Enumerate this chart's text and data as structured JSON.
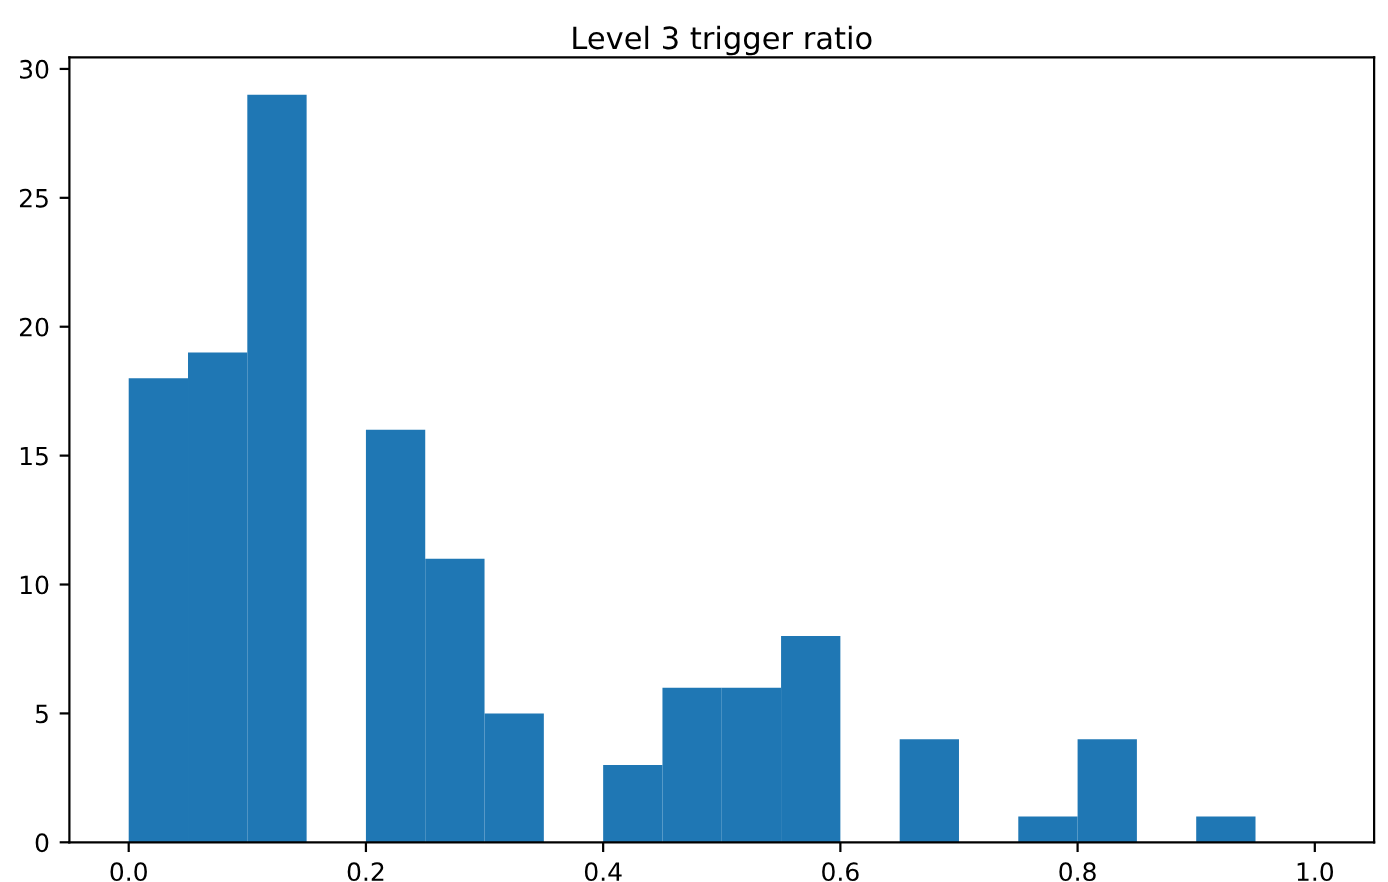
{
  "chart_data": {
    "type": "histogram",
    "title": "Level 3 trigger ratio",
    "bins": [
      0.0,
      0.05,
      0.1,
      0.15,
      0.2,
      0.25,
      0.3,
      0.35,
      0.4,
      0.45,
      0.5,
      0.55,
      0.6,
      0.65,
      0.7,
      0.75,
      0.8,
      0.85,
      0.9,
      0.95,
      1.0
    ],
    "values": [
      18,
      19,
      29,
      0,
      16,
      11,
      5,
      0,
      3,
      6,
      6,
      8,
      0,
      4,
      0,
      1,
      4,
      0,
      1,
      0
    ],
    "color": "#1f77b4",
    "xlim": [
      -0.05,
      1.05
    ],
    "xticks": [
      {
        "value": 0.0,
        "label": "0.0"
      },
      {
        "value": 0.2,
        "label": "0.2"
      },
      {
        "value": 0.4,
        "label": "0.4"
      },
      {
        "value": 0.6,
        "label": "0.6"
      },
      {
        "value": 0.8,
        "label": "0.8"
      },
      {
        "value": 1.0,
        "label": "1.0"
      }
    ],
    "ylim": [
      0,
      30.45
    ],
    "yticks": [
      0,
      5,
      10,
      15,
      20,
      25,
      30
    ]
  }
}
